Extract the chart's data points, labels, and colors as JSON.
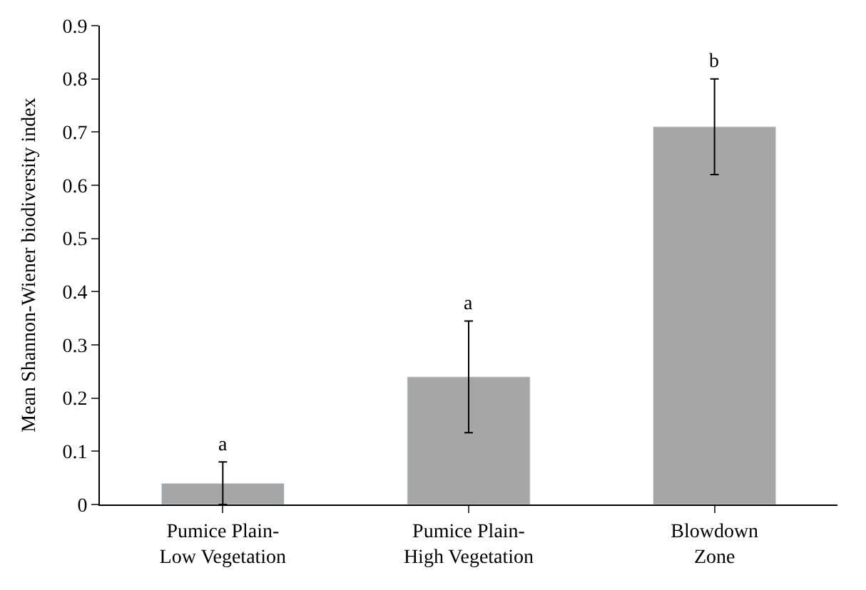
{
  "chart_data": {
    "type": "bar",
    "ylabel": "Mean Shannon-Wiener biodiversity index",
    "categories": [
      "Pumice Plain-\nLow Vegetation",
      "Pumice Plain-\nHigh Vegetation",
      "Blowdown\nZone"
    ],
    "values": [
      0.04,
      0.24,
      0.71
    ],
    "color": "#a6a6a6",
    "errors": [
      0.04,
      [
        0.135,
        0.345
      ],
      0.09
    ],
    "annotations": [
      {
        "text": "a",
        "x": "Pumice Plain-\nLow Vegetation",
        "y": 0.08
      },
      {
        "text": "a",
        "x": "Pumice Plain-\nHigh Vegetation",
        "y": 0.345
      },
      {
        "text": "b",
        "x": "Blowdown\nZone",
        "y": 0.8
      }
    ],
    "ylim": [
      0,
      0.9
    ],
    "yticks": [
      0,
      0.1,
      0.2,
      0.3,
      0.4,
      0.5,
      0.6,
      0.7,
      0.8,
      0.9
    ]
  }
}
